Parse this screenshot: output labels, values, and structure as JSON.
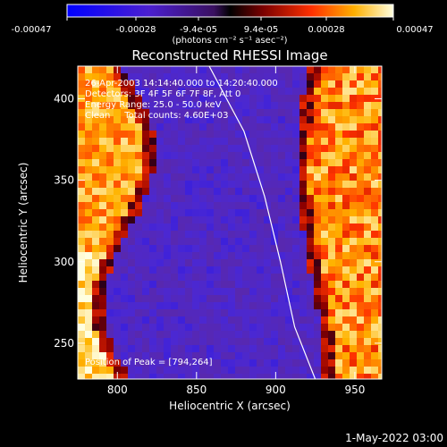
{
  "colorbar": {
    "ticks": [
      "-0.00047",
      "-0.00028",
      "-9.4e-05",
      "9.4e-05",
      "0.00028",
      "0.00047"
    ],
    "units": "(photons cm⁻² s⁻¹ asec⁻²)"
  },
  "chart_data": {
    "type": "heatmap",
    "title": "Reconstructed RHESSI Image",
    "xlabel": "Heliocentric X (arcsec)",
    "ylabel": "Heliocentric Y (arcsec)",
    "xlim": [
      775,
      967
    ],
    "ylim": [
      228,
      420
    ],
    "x_ticks": [
      800,
      850,
      900,
      950
    ],
    "y_ticks": [
      250,
      300,
      350,
      400
    ],
    "color_range": [
      -0.00047,
      0.00047
    ],
    "annotation_lines": [
      "26-Apr-2003 14:14:40.000 to 14:20:40.000",
      "Detectors: 3F 4F 5F 6F 7F 8F, Att 0",
      "Energy Range: 25.0 - 50.0 keV",
      "Clean     Total counts: 4.60E+03"
    ],
    "peak_label": "Position of Peak = [794,264]",
    "peak_position": [
      794,
      264
    ],
    "limb_curve": [
      [
        858,
        420
      ],
      [
        880,
        380
      ],
      [
        893,
        340
      ],
      [
        903,
        300
      ],
      [
        912,
        260
      ],
      [
        925,
        228
      ]
    ]
  },
  "footer": {
    "date": "1-May-2022 03:00"
  }
}
